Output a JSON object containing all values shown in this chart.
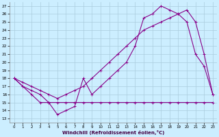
{
  "bg_color": "#cceeff",
  "grid_color": "#aaccdd",
  "line_color": "#880088",
  "xlabel": "Windchill (Refroidissement éolien,°C)",
  "xlim": [
    -0.5,
    23.5
  ],
  "ylim": [
    12.5,
    27.5
  ],
  "yticks": [
    13,
    14,
    15,
    16,
    17,
    18,
    19,
    20,
    21,
    22,
    23,
    24,
    25,
    26,
    27
  ],
  "xticks": [
    0,
    1,
    2,
    3,
    4,
    5,
    6,
    7,
    8,
    9,
    10,
    11,
    12,
    13,
    14,
    15,
    16,
    17,
    18,
    19,
    20,
    21,
    22,
    23
  ],
  "line1_x": [
    0,
    1,
    2,
    3,
    4,
    5,
    6,
    7,
    8,
    9,
    10,
    11,
    12,
    13,
    14,
    15,
    16,
    17,
    18,
    19,
    20,
    21,
    22,
    23
  ],
  "line1_y": [
    18,
    17,
    16,
    15,
    15,
    15,
    15,
    15,
    15,
    15,
    15,
    15,
    15,
    15,
    15,
    15,
    15,
    15,
    15,
    15,
    15,
    15,
    15,
    15
  ],
  "line2_x": [
    0,
    1,
    2,
    3,
    4,
    5,
    6,
    7,
    8,
    9,
    10,
    11,
    12,
    13,
    14,
    15,
    16,
    17,
    18,
    19,
    20,
    21,
    22,
    23
  ],
  "line2_y": [
    18,
    17,
    16.5,
    16,
    15,
    13.5,
    14,
    14.5,
    18,
    16,
    17,
    18,
    19,
    20,
    22,
    25.5,
    26,
    27,
    26.5,
    26,
    25,
    21,
    19.5,
    16
  ],
  "line3_x": [
    0,
    1,
    2,
    3,
    4,
    5,
    6,
    7,
    8,
    9,
    10,
    11,
    12,
    13,
    14,
    15,
    16,
    17,
    18,
    19,
    20,
    21,
    22,
    23
  ],
  "line3_y": [
    18,
    17.5,
    17,
    16.5,
    16,
    15.5,
    16,
    16.5,
    17,
    18,
    19,
    20,
    21,
    22,
    23,
    24,
    24.5,
    25,
    25.5,
    26,
    26.5,
    25,
    21,
    16
  ]
}
